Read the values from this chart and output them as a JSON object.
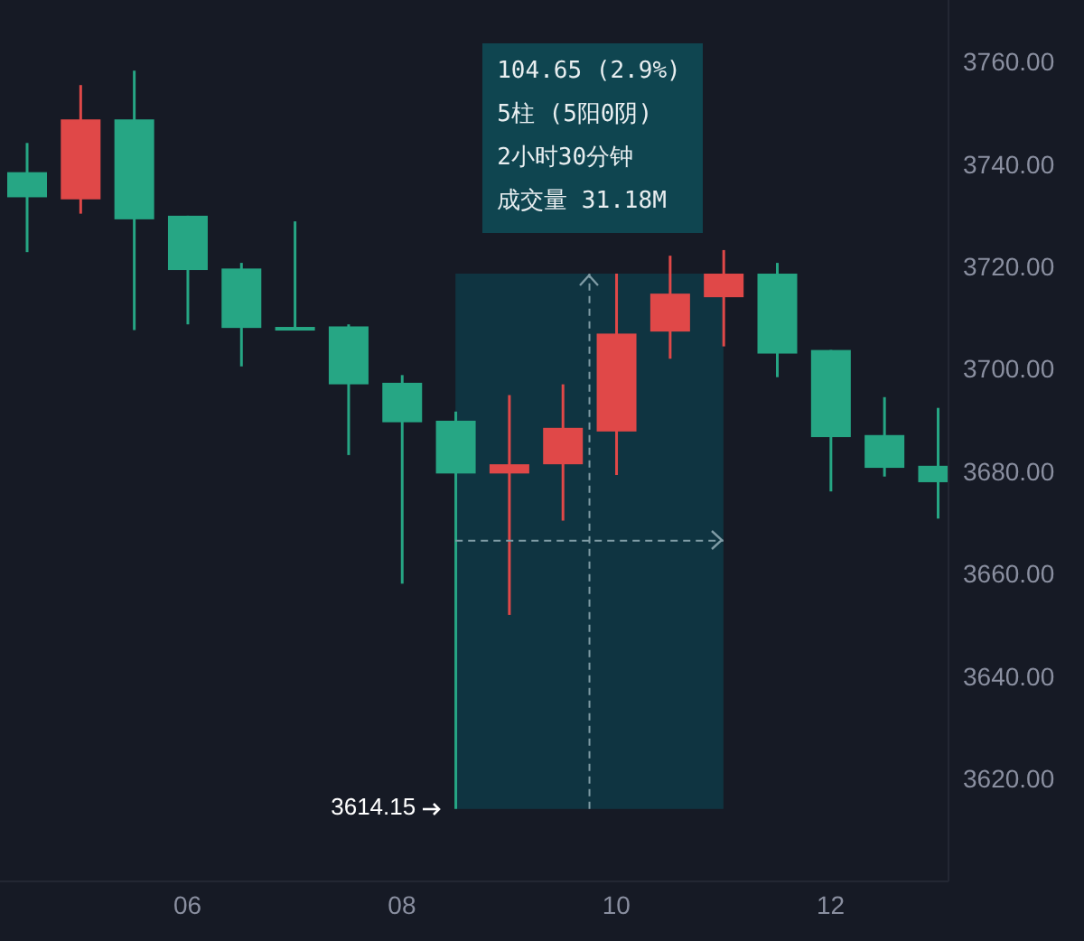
{
  "chart_data": {
    "type": "candlestick",
    "x": [
      4.5,
      5.0,
      5.5,
      6.0,
      6.5,
      7.0,
      7.5,
      8.0,
      8.5,
      9.0,
      9.5,
      10.0,
      10.5,
      11.0,
      11.5,
      12.0,
      12.5,
      13.0
    ],
    "ohlc": [
      [
        3738.4,
        3744.1,
        3722.8,
        3733.5
      ],
      [
        3733.1,
        3755.4,
        3730.3,
        3748.7
      ],
      [
        3748.7,
        3758.2,
        3707.6,
        3729.2
      ],
      [
        3729.9,
        3729.9,
        3708.7,
        3719.3
      ],
      [
        3719.6,
        3720.7,
        3700.5,
        3708.0
      ],
      [
        3708.2,
        3728.8,
        3707.8,
        3708.0
      ],
      [
        3708.3,
        3708.7,
        3683.2,
        3697.0
      ],
      [
        3697.3,
        3698.8,
        3658.1,
        3689.6
      ],
      [
        3689.9,
        3691.7,
        3614.15,
        3679.6
      ],
      [
        3679.6,
        3694.9,
        3652.0,
        3681.4
      ],
      [
        3681.4,
        3697.0,
        3670.4,
        3688.5
      ],
      [
        3687.8,
        3718.6,
        3679.3,
        3706.9
      ],
      [
        3707.3,
        3722.1,
        3702.0,
        3714.7
      ],
      [
        3714.0,
        3723.2,
        3704.4,
        3718.6
      ],
      [
        3718.6,
        3720.7,
        3698.4,
        3703.0
      ],
      [
        3703.7,
        3703.7,
        3676.1,
        3686.7
      ],
      [
        3687.1,
        3694.5,
        3679.0,
        3680.7
      ],
      [
        3681.1,
        3692.4,
        3670.8,
        3677.9
      ]
    ],
    "colors": [
      "#26a684",
      "#e04848",
      "#26a684",
      "#26a684",
      "#26a684",
      "#26a684",
      "#26a684",
      "#26a684",
      "#26a684",
      "#e04848",
      "#e04848",
      "#e04848",
      "#e04848",
      "#e04848",
      "#26a684",
      "#26a684",
      "#26a684",
      "#26a684"
    ],
    "xlim": [
      4.25,
      13.1
    ],
    "xticks": [
      {
        "value": 6,
        "label": "06"
      },
      {
        "value": 8,
        "label": "08"
      },
      {
        "value": 10,
        "label": "10"
      },
      {
        "value": 12,
        "label": "12"
      }
    ],
    "ylim": [
      3600,
      3772
    ],
    "yticks": [
      {
        "value": 3620,
        "label": "3620.00"
      },
      {
        "value": 3640,
        "label": "3640.00"
      },
      {
        "value": 3660,
        "label": "3660.00"
      },
      {
        "value": 3680,
        "label": "3680.00"
      },
      {
        "value": 3700,
        "label": "3700.00"
      },
      {
        "value": 3720,
        "label": "3720.00"
      },
      {
        "value": 3740,
        "label": "3740.00"
      },
      {
        "value": 3760,
        "label": "3760.00"
      }
    ],
    "grid": false,
    "ref_lines": [
      {
        "axis": "x",
        "value": 9.75,
        "color": "#7f9ba5",
        "line_style": "dashed"
      },
      {
        "axis": "y",
        "value": 3666.5,
        "color": "#7f9ba5",
        "line_style": "dashed"
      }
    ],
    "bands": [
      {
        "axis": "x",
        "from": 8.5,
        "to": 11.0,
        "color": "#0e3a46"
      }
    ],
    "annotations": [
      "104.65 (2.9%)",
      "5柱 (5阳0阴)",
      "2小时30分钟",
      "成交量 31.18M",
      {
        "text": "3614.15",
        "x": 8.5,
        "y": 3614.15
      }
    ]
  }
}
